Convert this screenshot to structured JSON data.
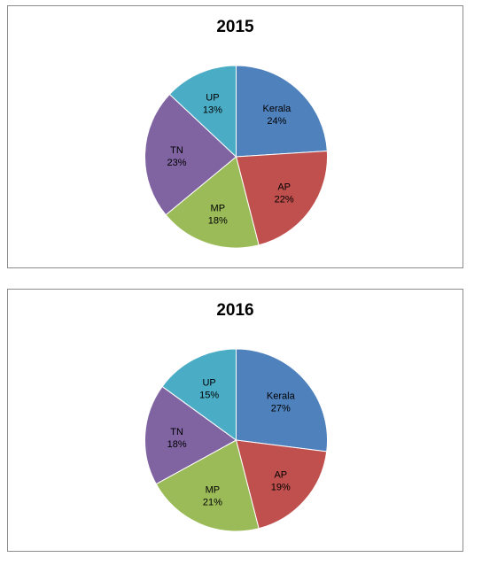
{
  "chart_data": [
    {
      "type": "pie",
      "title": "2015",
      "categories": [
        "Kerala",
        "AP",
        "MP",
        "TN",
        "UP"
      ],
      "values": [
        24,
        22,
        18,
        23,
        13
      ],
      "labels": [
        "24%",
        "22%",
        "18%",
        "23%",
        "13%"
      ],
      "colors": [
        "#4f81bd",
        "#c0504d",
        "#9bbb59",
        "#8064a2",
        "#4bacc6"
      ]
    },
    {
      "type": "pie",
      "title": "2016",
      "categories": [
        "Kerala",
        "AP",
        "MP",
        "TN",
        "UP"
      ],
      "values": [
        27,
        19,
        21,
        18,
        15
      ],
      "labels": [
        "27%",
        "19%",
        "21%",
        "18%",
        "15%"
      ],
      "colors": [
        "#4f81bd",
        "#c0504d",
        "#9bbb59",
        "#8064a2",
        "#4bacc6"
      ]
    }
  ]
}
